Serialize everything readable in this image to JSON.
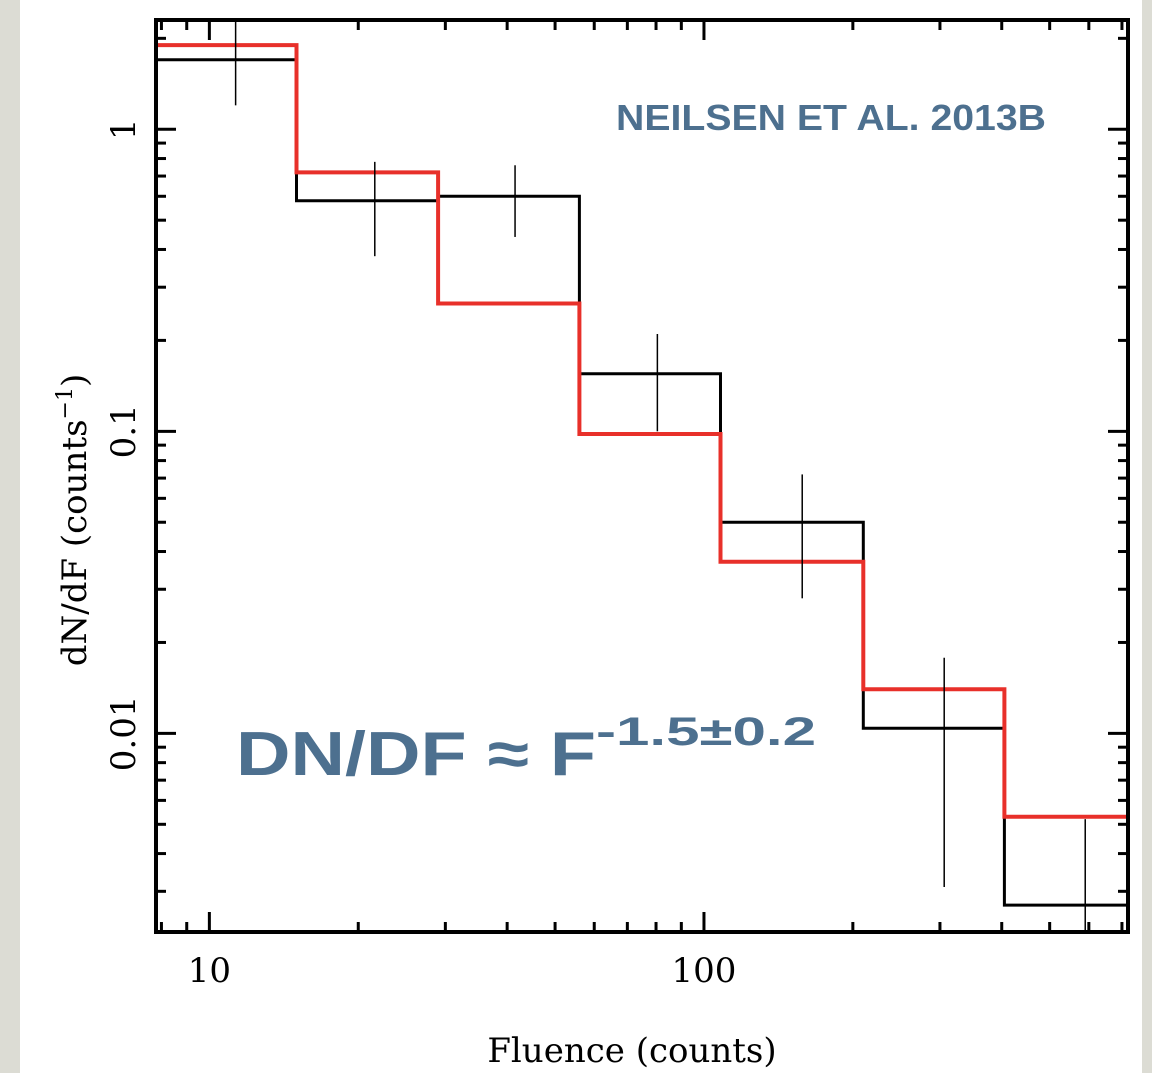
{
  "chart_data": {
    "type": "line",
    "xlabel": "Fluence (counts)",
    "ylabel": "dN/dF (counts",
    "ylabel_sup": "−1",
    "ylabel_close": ")",
    "xscale": "log",
    "yscale": "log",
    "xlim": [
      7.8,
      720
    ],
    "ylim": [
      0.0022,
      2.3
    ],
    "x_ticks": [
      {
        "value": 10,
        "label": "10"
      },
      {
        "value": 100,
        "label": "100"
      }
    ],
    "y_ticks": [
      {
        "value": 1,
        "label": "1"
      },
      {
        "value": 0.1,
        "label": "0.1"
      },
      {
        "value": 0.01,
        "label": "0.01"
      }
    ],
    "grid": false,
    "bin_edges": [
      7.8,
      15,
      29,
      56,
      108,
      210,
      405,
      720
    ],
    "series": [
      {
        "color": "#000000",
        "style": "step",
        "values": [
          1.7,
          0.58,
          0.6,
          0.155,
          0.05,
          0.0104,
          0.0027
        ],
        "points": [
          {
            "x": 11.3,
            "y": 1.7,
            "err_low": 1.2,
            "err_high": 2.3
          },
          {
            "x": 21.6,
            "y": 0.58,
            "err_low": 0.38,
            "err_high": 0.78
          },
          {
            "x": 41.5,
            "y": 0.6,
            "err_low": 0.44,
            "err_high": 0.76
          },
          {
            "x": 80.5,
            "y": 0.155,
            "err_low": 0.1,
            "err_high": 0.21
          },
          {
            "x": 158,
            "y": 0.05,
            "err_low": 0.028,
            "err_high": 0.072
          },
          {
            "x": 306,
            "y": 0.0104,
            "err_low": 0.0031,
            "err_high": 0.0178
          },
          {
            "x": 590,
            "y": 0.0027,
            "err_low": 0.0022,
            "err_high": 0.0052
          }
        ]
      },
      {
        "color": "#e8302a",
        "style": "step",
        "values": [
          1.9,
          0.72,
          0.265,
          0.098,
          0.037,
          0.014,
          0.0053
        ]
      }
    ],
    "annotations": [
      {
        "text": "NEILSEN ET AL. 2013B",
        "color": "#4d708f"
      },
      {
        "text": "DN/DF ≈ F",
        "sup": "-1.5±0.2",
        "color": "#4d708f"
      }
    ]
  }
}
